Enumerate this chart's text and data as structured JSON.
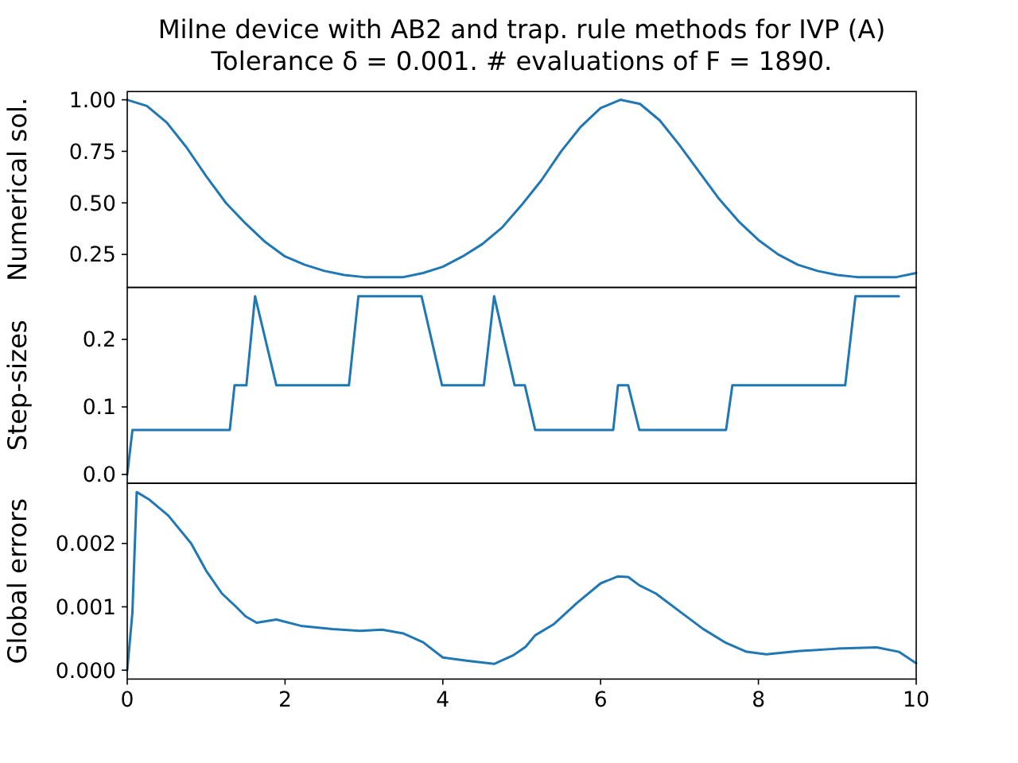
{
  "chart_data": [
    {
      "type": "line",
      "title": "Milne device with AB2 and trap. rule methods for IVP (A)",
      "subtitle": "Tolerance δ = 0.001. # evaluations of F = 1890.",
      "ylabel": "Numerical sol.",
      "color": "#1f77b4",
      "x": [
        0,
        0.25,
        0.5,
        0.75,
        1,
        1.25,
        1.5,
        1.75,
        2,
        2.25,
        2.5,
        2.75,
        3,
        3.25,
        3.5,
        3.75,
        4,
        4.25,
        4.5,
        4.75,
        5,
        5.25,
        5.5,
        5.75,
        6,
        6.25,
        6.5,
        6.75,
        7,
        7.25,
        7.5,
        7.75,
        8,
        8.25,
        8.5,
        8.75,
        9,
        9.25,
        9.5,
        9.75,
        10
      ],
      "values": [
        1.0,
        0.97,
        0.89,
        0.77,
        0.63,
        0.5,
        0.4,
        0.31,
        0.24,
        0.2,
        0.17,
        0.15,
        0.14,
        0.14,
        0.14,
        0.16,
        0.19,
        0.24,
        0.3,
        0.38,
        0.49,
        0.61,
        0.75,
        0.87,
        0.96,
        1.0,
        0.98,
        0.9,
        0.78,
        0.65,
        0.52,
        0.41,
        0.32,
        0.25,
        0.2,
        0.17,
        0.15,
        0.14,
        0.14,
        0.14,
        0.16
      ],
      "xlim": [
        0,
        10
      ],
      "ylim": [
        0.09,
        1.04
      ],
      "yticks": [
        0.25,
        {
          "value": 0.5,
          "label": "0.50"
        },
        0.75,
        {
          "value": 1,
          "label": "1.00"
        }
      ],
      "tick_labels": "y"
    },
    {
      "type": "line",
      "ylabel": "Step-sizes",
      "color": "#1f77b4",
      "x": [
        0,
        0.066,
        1.3,
        1.36,
        1.51,
        1.62,
        1.89,
        2.81,
        2.93,
        3.73,
        3.99,
        4.52,
        4.65,
        4.91,
        5.04,
        5.17,
        6.16,
        6.22,
        6.35,
        6.49,
        7.59,
        7.67,
        9.1,
        9.23,
        9.78
      ],
      "values": [
        0,
        0.066,
        0.066,
        0.132,
        0.132,
        0.264,
        0.132,
        0.132,
        0.264,
        0.264,
        0.132,
        0.132,
        0.264,
        0.132,
        0.132,
        0.066,
        0.066,
        0.132,
        0.132,
        0.066,
        0.066,
        0.132,
        0.132,
        0.264,
        0.264
      ],
      "xlim": [
        0,
        10
      ],
      "ylim": [
        -0.013,
        0.277
      ],
      "yticks": [
        {
          "value": 0,
          "label": "0.0"
        },
        0.1,
        0.2
      ],
      "tick_labels": "y"
    },
    {
      "type": "line",
      "ylabel": "Global errors",
      "color": "#1f77b4",
      "x": [
        0,
        0.065,
        0.12,
        0.27,
        0.52,
        0.81,
        1.0,
        1.2,
        1.38,
        1.5,
        1.64,
        1.89,
        2.2,
        2.6,
        2.95,
        3.23,
        3.5,
        3.75,
        4.0,
        4.3,
        4.65,
        4.9,
        5.05,
        5.17,
        5.4,
        5.7,
        6.0,
        6.22,
        6.35,
        6.49,
        6.7,
        7.0,
        7.3,
        7.59,
        7.85,
        8.1,
        8.5,
        9.0,
        9.5,
        9.78,
        10
      ],
      "values": [
        0,
        0.0009,
        0.00281,
        0.0027,
        0.00244,
        0.002,
        0.00157,
        0.00121,
        0.001,
        0.00085,
        0.00075,
        0.0008,
        0.0007,
        0.00065,
        0.00062,
        0.00064,
        0.00058,
        0.00044,
        0.0002,
        0.00015,
        0.0001,
        0.00024,
        0.00037,
        0.00055,
        0.00072,
        0.00106,
        0.00137,
        0.00148,
        0.00147,
        0.00134,
        0.00121,
        0.00093,
        0.00065,
        0.00043,
        0.00029,
        0.00025,
        0.0003,
        0.00034,
        0.00036,
        0.00029,
        0.00011
      ],
      "xlim": [
        0,
        10
      ],
      "ylim": [
        -0.00014,
        0.00295
      ],
      "xticks": [
        0,
        2,
        4,
        6,
        8,
        10
      ],
      "yticks": [
        {
          "value": 0,
          "label": "0.000"
        },
        {
          "value": 0.001,
          "label": "0.001"
        },
        {
          "value": 0.002,
          "label": "0.002"
        }
      ]
    }
  ]
}
